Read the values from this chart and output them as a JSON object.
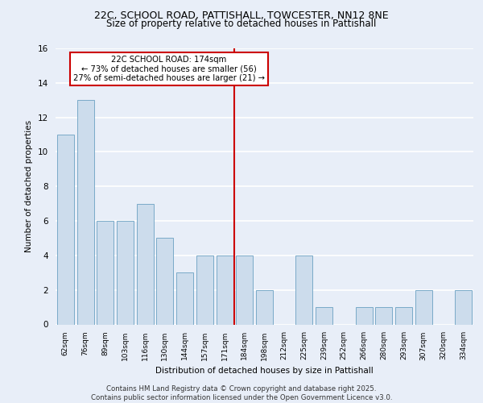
{
  "title1": "22C, SCHOOL ROAD, PATTISHALL, TOWCESTER, NN12 8NE",
  "title2": "Size of property relative to detached houses in Pattishall",
  "xlabel": "Distribution of detached houses by size in Pattishall",
  "ylabel": "Number of detached properties",
  "bar_labels": [
    "62sqm",
    "76sqm",
    "89sqm",
    "103sqm",
    "116sqm",
    "130sqm",
    "144sqm",
    "157sqm",
    "171sqm",
    "184sqm",
    "198sqm",
    "212sqm",
    "225sqm",
    "239sqm",
    "252sqm",
    "266sqm",
    "280sqm",
    "293sqm",
    "307sqm",
    "320sqm",
    "334sqm"
  ],
  "bar_values": [
    11,
    13,
    6,
    6,
    7,
    5,
    3,
    4,
    4,
    4,
    2,
    0,
    4,
    1,
    0,
    1,
    1,
    1,
    2,
    0,
    2
  ],
  "bar_color": "#ccdcec",
  "bar_edgecolor": "#7aaac8",
  "bg_color": "#e8eef8",
  "plot_bg_color": "#e8eef8",
  "grid_color": "#ffffff",
  "vline_x": 8.5,
  "vline_color": "#cc0000",
  "annotation_box_text": "22C SCHOOL ROAD: 174sqm\n← 73% of detached houses are smaller (56)\n27% of semi-detached houses are larger (21) →",
  "annotation_box_color": "#cc0000",
  "annotation_box_bg": "#ffffff",
  "ylim": [
    0,
    16
  ],
  "yticks": [
    0,
    2,
    4,
    6,
    8,
    10,
    12,
    14,
    16
  ],
  "footer": "Contains HM Land Registry data © Crown copyright and database right 2025.\nContains public sector information licensed under the Open Government Licence v3.0."
}
